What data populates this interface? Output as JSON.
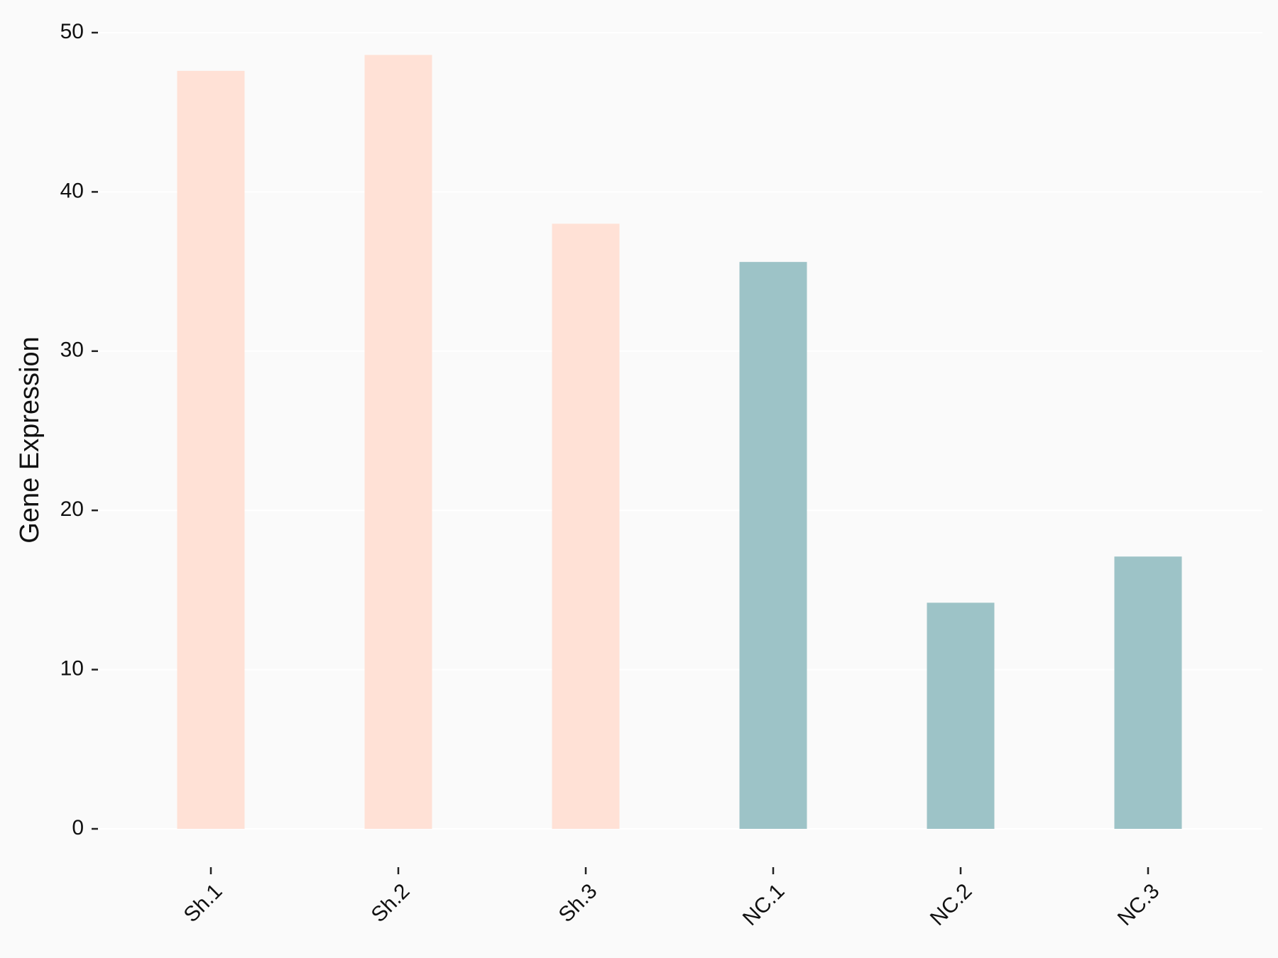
{
  "chart_data": {
    "type": "bar",
    "y_label": "Gene Expression",
    "categories": [
      "Sh.1",
      "Sh.2",
      "Sh.3",
      "NC.1",
      "NC.2",
      "NC.3"
    ],
    "values": [
      47.6,
      48.6,
      38.0,
      35.6,
      14.2,
      17.1
    ],
    "colors": [
      "#ffe1d6",
      "#ffe1d6",
      "#ffe1d6",
      "#9dc3c7",
      "#9dc3c7",
      "#9dc3c7"
    ],
    "ylim": [
      0,
      50
    ],
    "yticks": [
      0,
      10,
      20,
      30,
      40,
      50
    ],
    "grid": true
  }
}
